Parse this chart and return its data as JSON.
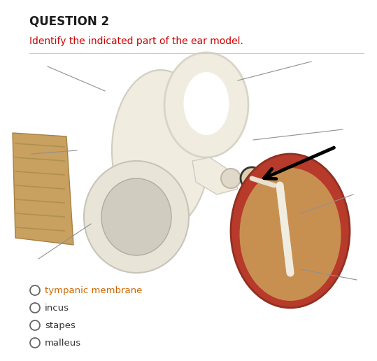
{
  "title": "QUESTION 2",
  "subtitle": "Identify the indicated part of the ear model.",
  "title_color": "#1a1a1a",
  "subtitle_color": "#cc0000",
  "title_fontsize": 12,
  "subtitle_fontsize": 10,
  "title_bold": true,
  "options": [
    {
      "label": "tympanic membrane",
      "color": "#cc6600"
    },
    {
      "label": "incus",
      "color": "#333333"
    },
    {
      "label": "stapes",
      "color": "#333333"
    },
    {
      "label": "malleus",
      "color": "#333333"
    }
  ],
  "background_color": "#ffffff"
}
